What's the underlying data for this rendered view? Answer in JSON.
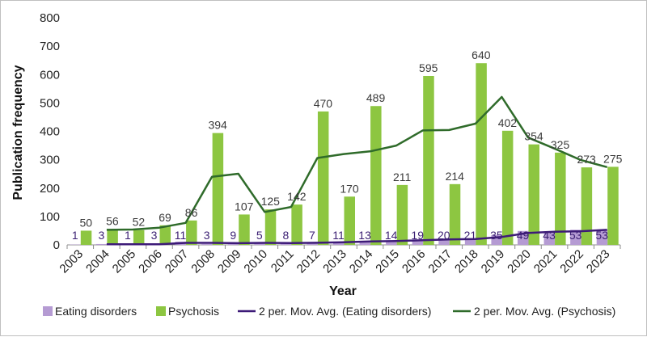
{
  "chart_data": {
    "type": "bar",
    "xlabel": "Year",
    "ylabel": "Publication frequency",
    "ylim": [
      0,
      800
    ],
    "yticks": [
      0,
      100,
      200,
      300,
      400,
      500,
      600,
      700,
      800
    ],
    "categories": [
      "2003",
      "2004",
      "2005",
      "2006",
      "2007",
      "2008",
      "2009",
      "2010",
      "2011",
      "2012",
      "2013",
      "2014",
      "2015",
      "2016",
      "2017",
      "2018",
      "2019",
      "2020",
      "2021",
      "2022",
      "2023"
    ],
    "series": [
      {
        "name": "Eating disorders",
        "kind": "bar",
        "color": "#b59bd3",
        "label_color": "#3b1f73",
        "values": [
          1,
          3,
          1,
          3,
          11,
          3,
          9,
          5,
          8,
          7,
          11,
          13,
          14,
          19,
          20,
          21,
          35,
          49,
          43,
          53,
          53
        ]
      },
      {
        "name": "Psychosis",
        "kind": "bar",
        "color": "#8dc641",
        "label_color": "#3a3a3a",
        "values": [
          50,
          56,
          52,
          69,
          86,
          394,
          107,
          125,
          142,
          470,
          170,
          489,
          211,
          595,
          214,
          640,
          402,
          354,
          325,
          273,
          275
        ]
      },
      {
        "name": "2 per. Mov. Avg. (Eating disorders)",
        "kind": "line",
        "color": "#3d1a78",
        "values": [
          null,
          2,
          2,
          2,
          7,
          7,
          6,
          7,
          6.5,
          7.5,
          9,
          12,
          13.5,
          16.5,
          19.5,
          20.5,
          28,
          42,
          46,
          48,
          53
        ]
      },
      {
        "name": "2 per. Mov. Avg. (Psychosis)",
        "kind": "line",
        "color": "#2f6b2a",
        "values": [
          null,
          53,
          54,
          60.5,
          77.5,
          240,
          250.5,
          116,
          133.5,
          306,
          320,
          329.5,
          350,
          403,
          404.5,
          427,
          521,
          378,
          339.5,
          299,
          274
        ]
      }
    ],
    "legend_position": "bottom",
    "grid": false
  }
}
